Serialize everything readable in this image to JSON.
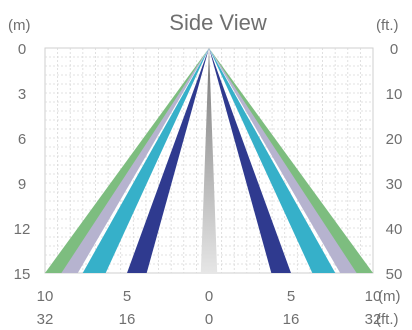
{
  "title": "Side View",
  "left_axis": {
    "unit": "(m)",
    "ticks": [
      "0",
      "3",
      "6",
      "9",
      "12",
      "15"
    ],
    "range": [
      0,
      15
    ]
  },
  "right_axis": {
    "unit": "(ft.)",
    "ticks": [
      "0",
      "10",
      "20",
      "30",
      "40",
      "50"
    ],
    "range": [
      0,
      50
    ]
  },
  "bottom_axis": {
    "m_ticks": [
      "10",
      "5",
      "0",
      "5",
      "10"
    ],
    "m_unit": "(m)",
    "ft_ticks": [
      "32",
      "16",
      "0",
      "16",
      "32"
    ],
    "ft_unit": "(ft.)",
    "range_m": [
      -10,
      10
    ]
  },
  "beam_zones": [
    {
      "color": "#7dbd7f",
      "spread_m": 10.0,
      "width_m": 1.1
    },
    {
      "color": "#b6b3cf",
      "spread_m": 9.0,
      "width_m": 1.0
    },
    {
      "color": "#36b0c9",
      "spread_m": 7.7,
      "width_m": 1.4
    },
    {
      "color": "#2f3a8f",
      "spread_m": 5.0,
      "width_m": 1.2
    }
  ],
  "center_beam": {
    "color_top": "#777777",
    "color_bottom": "#e6e6e6",
    "half_width_m": 0.5
  }
}
